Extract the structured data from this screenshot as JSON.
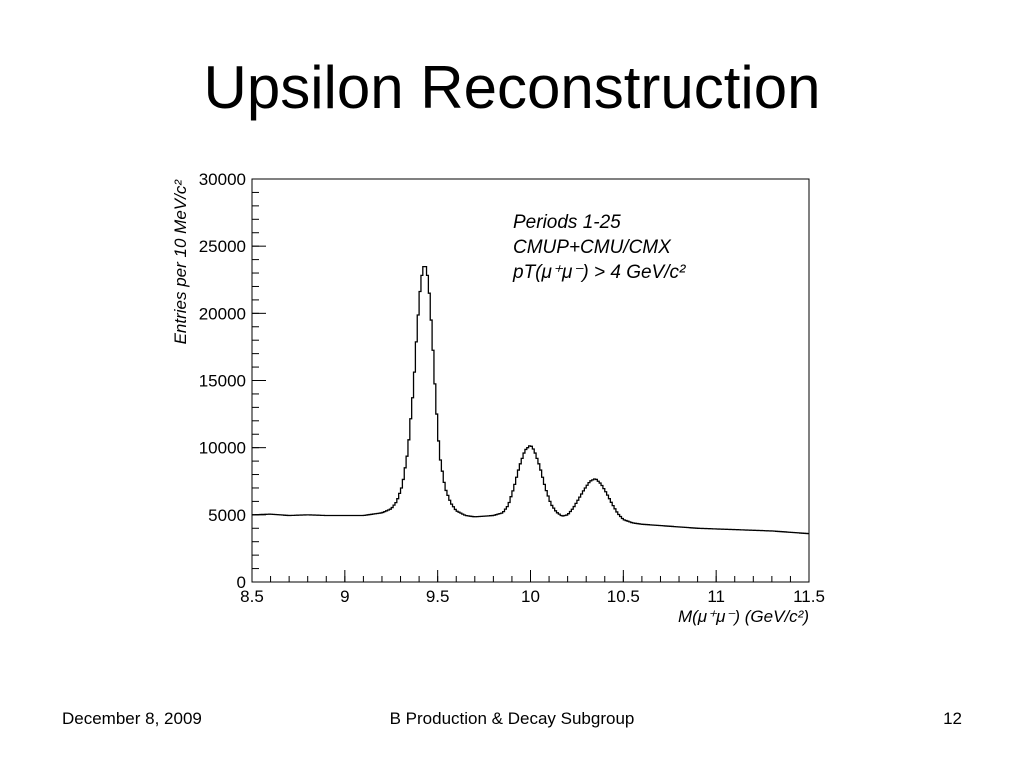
{
  "slide": {
    "title": "Upsilon Reconstruction",
    "footer_date": "December 8, 2009",
    "footer_center": "B Production & Decay Subgroup",
    "footer_page": "12"
  },
  "chart_data": {
    "type": "line",
    "style": "histogram-step",
    "title": "",
    "xlabel": "M(μ⁺μ⁻)  (GeV/c²)",
    "ylabel": "Entries per 10 MeV/c²",
    "xlim": [
      8.5,
      11.5
    ],
    "ylim": [
      0,
      30000
    ],
    "grid": false,
    "x_ticks": [
      "8.5",
      "9",
      "9.5",
      "10",
      "10.5",
      "11",
      "11.5"
    ],
    "y_ticks": [
      "0",
      "5000",
      "10000",
      "15000",
      "20000",
      "25000",
      "30000"
    ],
    "annotations": [
      "Periods 1-25",
      "CMUP+CMU/CMX",
      "pT(μ⁺μ⁻) > 4 GeV/c²"
    ],
    "series": [
      {
        "x": [
          8.5,
          8.6,
          8.7,
          8.8,
          8.9,
          9.0,
          9.1,
          9.15,
          9.2,
          9.25,
          9.28,
          9.31,
          9.34,
          9.37,
          9.39,
          9.41,
          9.43,
          9.45,
          9.47,
          9.49,
          9.51,
          9.54,
          9.57,
          9.6,
          9.65,
          9.7,
          9.75,
          9.8,
          9.85,
          9.88,
          9.91,
          9.94,
          9.97,
          10.0,
          10.02,
          10.05,
          10.08,
          10.11,
          10.14,
          10.17,
          10.2,
          10.23,
          10.26,
          10.29,
          10.32,
          10.35,
          10.38,
          10.41,
          10.44,
          10.47,
          10.5,
          10.55,
          10.6,
          10.7,
          10.8,
          10.9,
          11.0,
          11.1,
          11.2,
          11.3,
          11.4,
          11.5
        ],
        "y": [
          5000,
          5050,
          4950,
          5000,
          4950,
          4950,
          4950,
          5050,
          5150,
          5450,
          6000,
          7200,
          9800,
          14500,
          19000,
          22500,
          23800,
          22500,
          18500,
          13500,
          9500,
          7000,
          5900,
          5300,
          4950,
          4850,
          4900,
          4950,
          5150,
          5700,
          7000,
          8600,
          9800,
          10200,
          9800,
          8600,
          7000,
          5800,
          5200,
          4900,
          5000,
          5500,
          6200,
          6900,
          7500,
          7700,
          7300,
          6600,
          5800,
          5100,
          4650,
          4400,
          4300,
          4200,
          4100,
          4000,
          3950,
          3900,
          3850,
          3800,
          3700,
          3600
        ]
      }
    ]
  }
}
